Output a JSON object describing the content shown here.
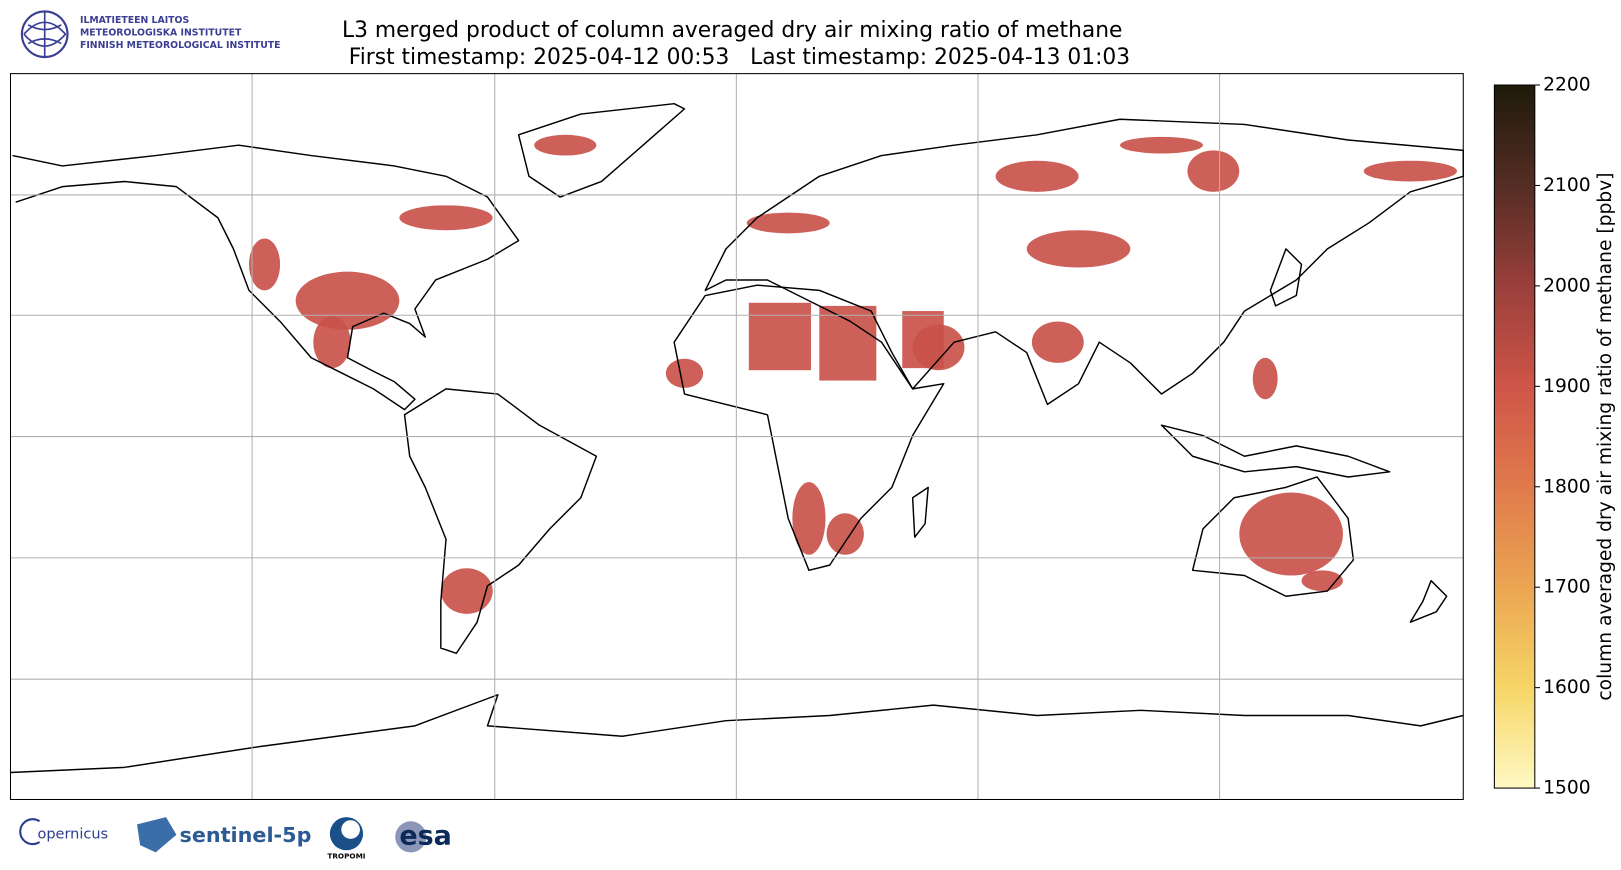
{
  "header": {
    "logo_lines": [
      "ILMATIETEEN LAITOS",
      "METEOROLOGISKA INSTITUTET",
      "FINNISH METEOROLOGICAL INSTITUTE"
    ],
    "title": [
      "L3 merged product of column averaged dry air mixing ratio of methane",
      "First timestamp: 2025-04-12 00:53   Last timestamp: 2025-04-13 01:03"
    ]
  },
  "colorbar": {
    "label": "column averaged dry air mixing ratio of methane [ppbv]",
    "lim": [
      1500,
      2200
    ],
    "ticks": [
      1500,
      1600,
      1700,
      1800,
      1900,
      2000,
      2100,
      2200
    ],
    "colors": [
      "#fff9c4",
      "#f6d566",
      "#eba552",
      "#e07a4c",
      "#ce5548",
      "#9a3f3b",
      "#552d24",
      "#1e1a0a"
    ]
  },
  "footer": {
    "logos": [
      "opernicus",
      "sentinel-5p",
      "TROPOMI",
      "esa"
    ]
  }
}
